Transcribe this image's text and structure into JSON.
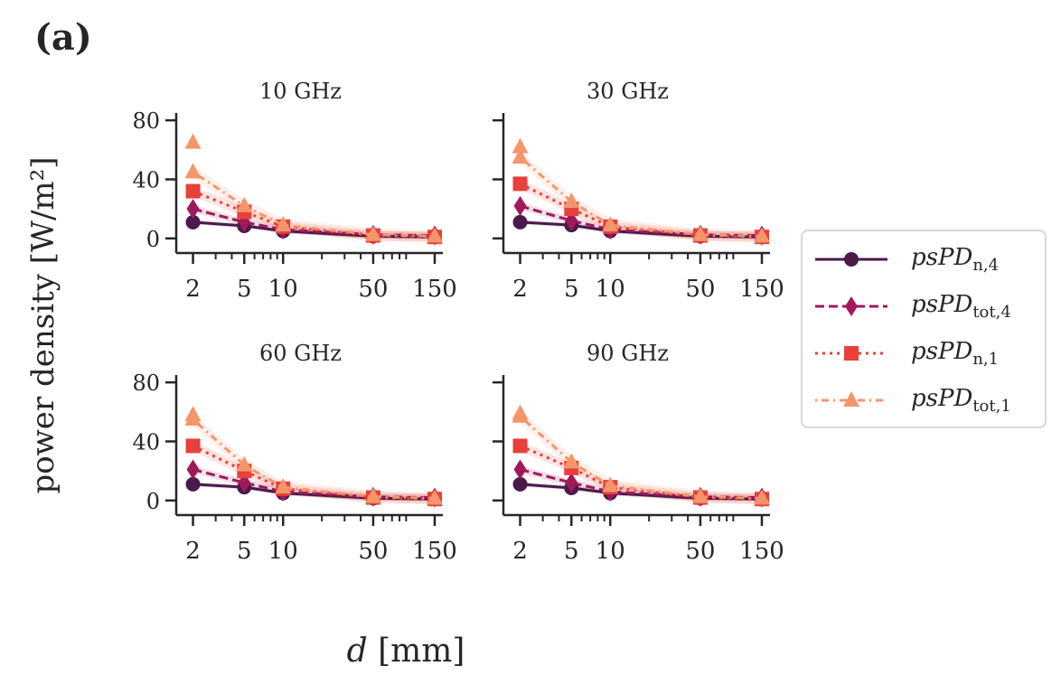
{
  "panel_label": "(a)",
  "ylabel": "power density [W/m²]",
  "xlabel_var": "d",
  "xlabel_unit": "[mm]",
  "colors": {
    "psPD_n4": "#4a1a4a",
    "psPD_tot4": "#a0195a",
    "psPD_n1": "#e8403a",
    "psPD_tot1": "#f4956a",
    "axis": "#262626"
  },
  "legend": [
    {
      "base": "psPD",
      "sub": "n,4",
      "series": "psPD_n4"
    },
    {
      "base": "psPD",
      "sub": "tot,4",
      "series": "psPD_tot4"
    },
    {
      "base": "psPD",
      "sub": "n,1",
      "series": "psPD_n1"
    },
    {
      "base": "psPD",
      "sub": "tot,1",
      "series": "psPD_tot1"
    }
  ],
  "chart_data": [
    {
      "type": "line",
      "title": "10 GHz",
      "x_scale": "log",
      "x_ticks": [
        2,
        5,
        10,
        50,
        150
      ],
      "y_ticks": [
        0,
        40,
        80
      ],
      "ylim": [
        -5,
        85
      ],
      "x": [
        2,
        5,
        10,
        50,
        150
      ],
      "series": [
        {
          "name": "psPD_n,4",
          "marker": "circle",
          "line": "solid",
          "values": [
            11,
            8.5,
            5,
            1.5,
            1
          ]
        },
        {
          "name": "psPD_tot,4",
          "marker": "diamond",
          "line": "dashed",
          "values": [
            20,
            11,
            6,
            2.5,
            2
          ]
        },
        {
          "name": "psPD_n,1",
          "marker": "square",
          "line": "dotted",
          "values": [
            32,
            18,
            8,
            2,
            1
          ]
        },
        {
          "name": "psPD_tot,1",
          "marker": "triangle",
          "line": "dashdot",
          "values": [
            45,
            22,
            9,
            2.5,
            1.5
          ]
        },
        {
          "name": "psPD_tot,1 (extra)",
          "marker": "triangle",
          "line": "none",
          "values": [
            65,
            null,
            null,
            null,
            null
          ]
        }
      ]
    },
    {
      "type": "line",
      "title": "30 GHz",
      "x_scale": "log",
      "x_ticks": [
        2,
        5,
        10,
        50,
        150
      ],
      "y_ticks": [
        0,
        40,
        80
      ],
      "ylim": [
        -5,
        85
      ],
      "x": [
        2,
        5,
        10,
        50,
        150
      ],
      "series": [
        {
          "name": "psPD_n,4",
          "marker": "circle",
          "line": "solid",
          "values": [
            11,
            9,
            5,
            1.5,
            1
          ]
        },
        {
          "name": "psPD_tot,4",
          "marker": "diamond",
          "line": "dashed",
          "values": [
            22,
            12,
            6,
            2.5,
            2
          ]
        },
        {
          "name": "psPD_n,1",
          "marker": "square",
          "line": "dotted",
          "values": [
            37,
            20,
            8,
            2,
            1
          ]
        },
        {
          "name": "psPD_tot,1",
          "marker": "triangle",
          "line": "dashdot",
          "values": [
            55,
            25,
            9,
            2.5,
            1.5
          ]
        },
        {
          "name": "psPD_tot,1 (extra)",
          "marker": "triangle",
          "line": "none",
          "values": [
            62,
            null,
            null,
            null,
            null
          ]
        }
      ]
    },
    {
      "type": "line",
      "title": "60 GHz",
      "x_scale": "log",
      "x_ticks": [
        2,
        5,
        10,
        50,
        150
      ],
      "y_ticks": [
        0,
        40,
        80
      ],
      "ylim": [
        -5,
        85
      ],
      "x": [
        2,
        5,
        10,
        50,
        150
      ],
      "series": [
        {
          "name": "psPD_n,4",
          "marker": "circle",
          "line": "solid",
          "values": [
            11,
            9,
            5,
            1.5,
            1
          ]
        },
        {
          "name": "psPD_tot,4",
          "marker": "diamond",
          "line": "dashed",
          "values": [
            21,
            12,
            6,
            2.5,
            2
          ]
        },
        {
          "name": "psPD_n,1",
          "marker": "square",
          "line": "dotted",
          "values": [
            37,
            20,
            8,
            2,
            1
          ]
        },
        {
          "name": "psPD_tot,1",
          "marker": "triangle",
          "line": "dashdot",
          "values": [
            55,
            24,
            9,
            2.5,
            1.5
          ]
        },
        {
          "name": "psPD_tot,1 (extra)",
          "marker": "triangle",
          "line": "none",
          "values": [
            58,
            null,
            null,
            null,
            null
          ]
        }
      ]
    },
    {
      "type": "line",
      "title": "90 GHz",
      "x_scale": "log",
      "x_ticks": [
        2,
        5,
        10,
        50,
        150
      ],
      "y_ticks": [
        0,
        40,
        80
      ],
      "ylim": [
        -5,
        85
      ],
      "x": [
        2,
        5,
        10,
        50,
        150
      ],
      "series": [
        {
          "name": "psPD_n,4",
          "marker": "circle",
          "line": "solid",
          "values": [
            11,
            8.5,
            5,
            1.5,
            1
          ]
        },
        {
          "name": "psPD_tot,4",
          "marker": "diamond",
          "line": "dashed",
          "values": [
            21,
            12,
            6,
            2.5,
            2
          ]
        },
        {
          "name": "psPD_n,1",
          "marker": "square",
          "line": "dotted",
          "values": [
            37,
            22,
            9,
            2,
            1
          ]
        },
        {
          "name": "psPD_tot,1",
          "marker": "triangle",
          "line": "dashdot",
          "values": [
            57,
            26,
            10,
            2.5,
            1.5
          ]
        },
        {
          "name": "psPD_tot,1 (extra)",
          "marker": "triangle",
          "line": "none",
          "values": [
            59,
            null,
            null,
            null,
            null
          ]
        }
      ]
    }
  ]
}
